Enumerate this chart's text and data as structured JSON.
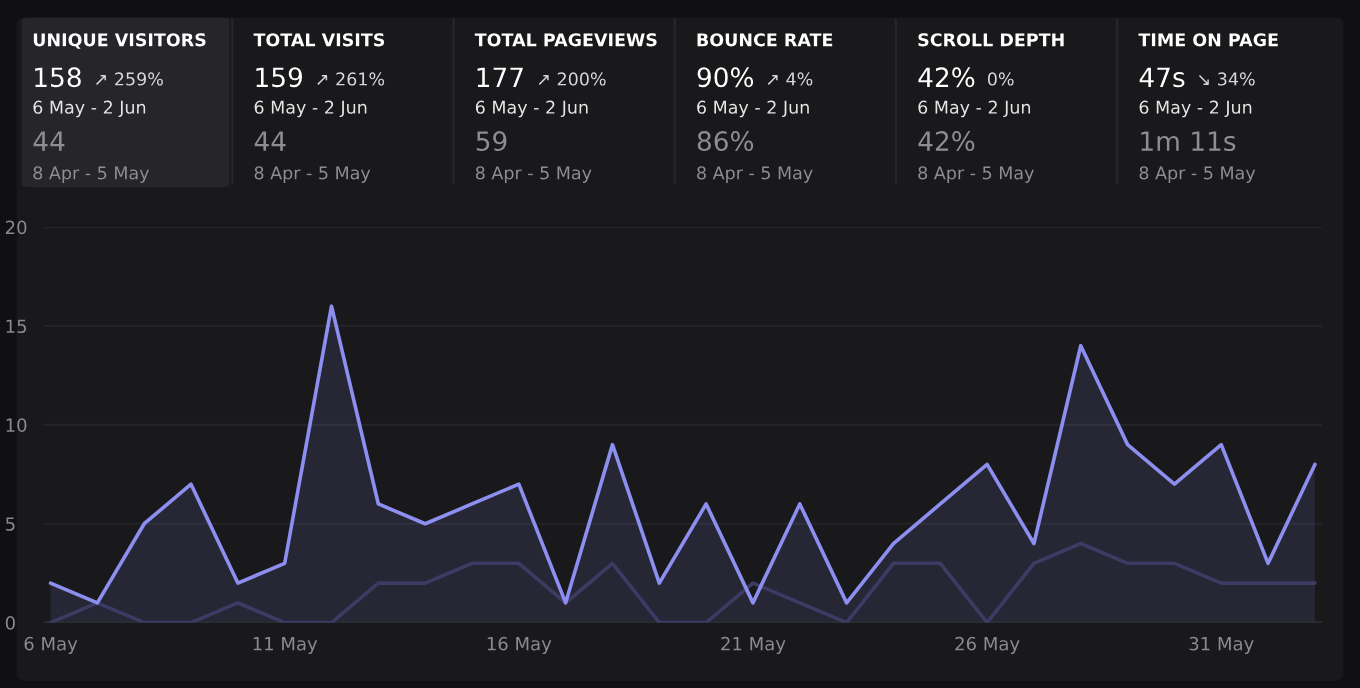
{
  "chart_data": [
    {
      "type": "other",
      "annotations": [
        "UNIQUE VISITORS",
        "158",
        "↗ 259%",
        "6 May - 2 Jun",
        "44",
        "8 Apr - 5 May",
        "TOTAL VISITS",
        "159",
        "↗ 261%",
        "6 May - 2 Jun",
        "44",
        "8 Apr - 5 May",
        "TOTAL PAGEVIEWS",
        "177",
        "↗ 200%",
        "6 May - 2 Jun",
        "59",
        "8 Apr - 5 May",
        "BOUNCE RATE",
        "90%",
        "↗ 4%",
        "6 May - 2 Jun",
        "86%",
        "8 Apr - 5 May",
        "SCROLL DEPTH",
        "42%",
        "0%",
        "6 May - 2 Jun",
        "42%",
        "8 Apr - 5 May",
        "TIME ON PAGE",
        "47s",
        "↘ 34%",
        "6 May - 2 Jun",
        "1m 11s",
        "8 Apr - 5 May"
      ]
    },
    {
      "type": "area",
      "categories": [
        "6 May",
        null,
        null,
        null,
        null,
        "11 May",
        null,
        null,
        null,
        null,
        "16 May",
        null,
        null,
        null,
        null,
        "21 May",
        null,
        null,
        null,
        null,
        "26 May",
        null,
        null,
        null,
        null,
        "31 May",
        null,
        null
      ],
      "series": [
        {
          "type": "area",
          "color": "#8c8ff0",
          "values": [
            2,
            1,
            5,
            7,
            2,
            3,
            16,
            6,
            5,
            6,
            7,
            1,
            9,
            2,
            6,
            1,
            6,
            1,
            4,
            6,
            8,
            4,
            14,
            9,
            7,
            9,
            3,
            8
          ]
        },
        {
          "type": "line",
          "color": "#3d3b63",
          "values": [
            0,
            1,
            0,
            0,
            1,
            0,
            0,
            2,
            2,
            3,
            3,
            1,
            3,
            0,
            0,
            2,
            1,
            0,
            3,
            3,
            0,
            3,
            4,
            3,
            3,
            2,
            2,
            2
          ]
        }
      ],
      "ylim": [
        0,
        20
      ],
      "yticks": [
        0,
        5,
        10,
        15,
        20
      ],
      "grid": "y"
    }
  ]
}
